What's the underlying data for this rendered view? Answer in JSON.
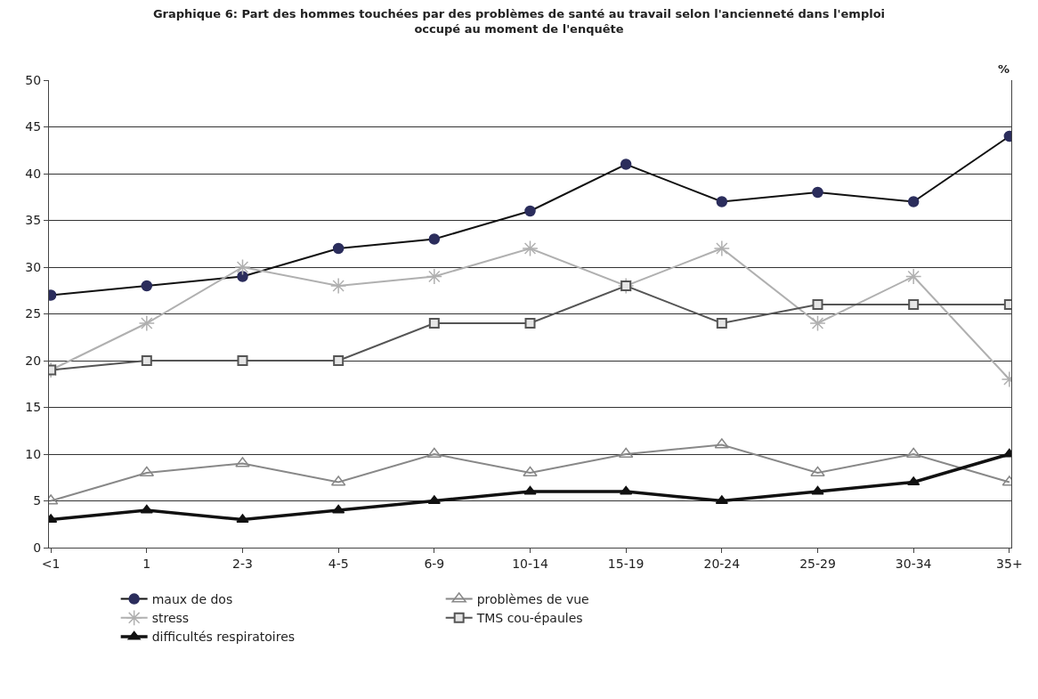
{
  "chart_data": {
    "type": "line",
    "title": "Graphique 6: Part des hommes touchées par des problèmes de santé au travail selon l'ancienneté dans l'emploi occupé au moment de l'enquête",
    "annotations": [
      "%"
    ],
    "categories": [
      "<1",
      "1",
      "2-3",
      "4-5",
      "6-9",
      "10-14",
      "15-19",
      "20-24",
      "25-29",
      "30-34",
      "35+"
    ],
    "series": [
      {
        "name": "maux de dos",
        "color": "#2b2d5c",
        "marker": "circle",
        "values": [
          27,
          28,
          29,
          32,
          33,
          36,
          41,
          37,
          38,
          37,
          44
        ]
      },
      {
        "name": "problèmes de vue",
        "color": "#888888",
        "marker": "triangle",
        "values": [
          5,
          8,
          9,
          7,
          10,
          8,
          10,
          11,
          8,
          10,
          7
        ]
      },
      {
        "name": "stress",
        "color": "#b0b0b0",
        "marker": "cross",
        "values": [
          19,
          24,
          30,
          28,
          29,
          32,
          28,
          32,
          24,
          29,
          18
        ]
      },
      {
        "name": "TMS cou-épaules",
        "color": "#555555",
        "marker": "square",
        "values": [
          19,
          20,
          20,
          20,
          24,
          24,
          28,
          24,
          26,
          26,
          26
        ]
      },
      {
        "name": "difficultés respiratoires",
        "color": "#111111",
        "marker": "triangle",
        "values": [
          3,
          4,
          3,
          4,
          5,
          6,
          6,
          5,
          6,
          7,
          10
        ]
      }
    ],
    "ylim": [
      0,
      50
    ],
    "yticks": [
      0,
      5,
      10,
      15,
      20,
      25,
      30,
      35,
      40,
      45,
      50
    ],
    "grid": "y",
    "legend": "bottom",
    "line_style": "solid"
  }
}
